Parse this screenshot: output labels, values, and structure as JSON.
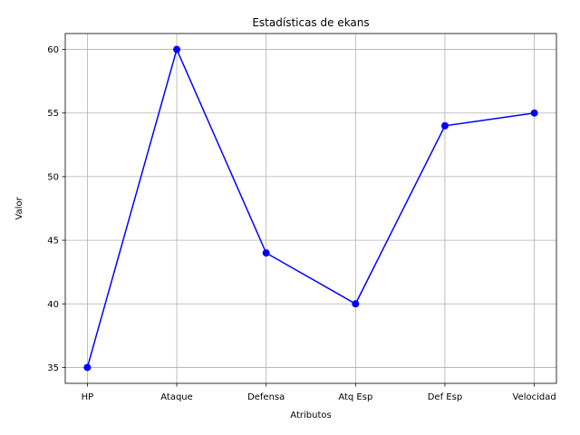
{
  "chart_data": {
    "type": "line",
    "title": "Estadísticas de ekans",
    "xlabel": "Atributos",
    "ylabel": "Valor",
    "categories": [
      "HP",
      "Ataque",
      "Defensa",
      "Atq Esp",
      "Def Esp",
      "Velocidad"
    ],
    "series": [
      {
        "values": [
          35,
          60,
          44,
          40,
          54,
          55
        ],
        "color": "#0000ff",
        "marker": "circle"
      }
    ],
    "ylim": [
      33.75,
      61.25
    ],
    "yticks": [
      35,
      40,
      45,
      50,
      55,
      60
    ],
    "grid": true,
    "legend": "none"
  }
}
